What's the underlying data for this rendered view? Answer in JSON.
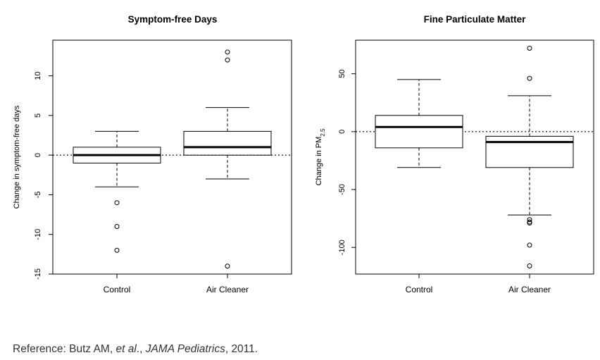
{
  "chart_data": [
    {
      "type": "box",
      "title": "Symptom-free Days",
      "xlabel": "",
      "ylabel": "Change in symptom-free days",
      "ylim": [
        -15,
        14.5
      ],
      "yticks": [
        -15,
        -10,
        -5,
        0,
        5,
        10
      ],
      "reference_line": 0,
      "categories": [
        "Control",
        "Air Cleaner"
      ],
      "boxes": [
        {
          "q1": -1,
          "median": 0,
          "q3": 1,
          "whisker_low": -4,
          "whisker_high": 3,
          "outliers": [
            -6,
            -9,
            -12
          ]
        },
        {
          "q1": 0,
          "median": 1,
          "q3": 3,
          "whisker_low": -3,
          "whisker_high": 6,
          "outliers": [
            13,
            12,
            -14
          ]
        }
      ]
    },
    {
      "type": "box",
      "title": "Fine Particulate Matter",
      "xlabel": "",
      "ylabel": "Change in PM",
      "ylabel_sub": "2.5",
      "ylim": [
        -123,
        79
      ],
      "yticks": [
        -100,
        -50,
        0,
        50
      ],
      "reference_line": 0,
      "categories": [
        "Control",
        "Air Cleaner"
      ],
      "boxes": [
        {
          "q1": -14,
          "median": 4,
          "q3": 14,
          "whisker_low": -31,
          "whisker_high": 45,
          "outliers": []
        },
        {
          "q1": -31,
          "median": -9,
          "q3": -4,
          "whisker_low": -72,
          "whisker_high": 31,
          "outliers": [
            72,
            46,
            -76,
            -78,
            -79,
            -98,
            -116
          ]
        }
      ]
    }
  ],
  "reference": {
    "prefix": "Reference: Butz AM, ",
    "etal": "et al",
    "sep1": "., ",
    "journal": "JAMA Pediatrics",
    "suffix": ", 2011."
  }
}
